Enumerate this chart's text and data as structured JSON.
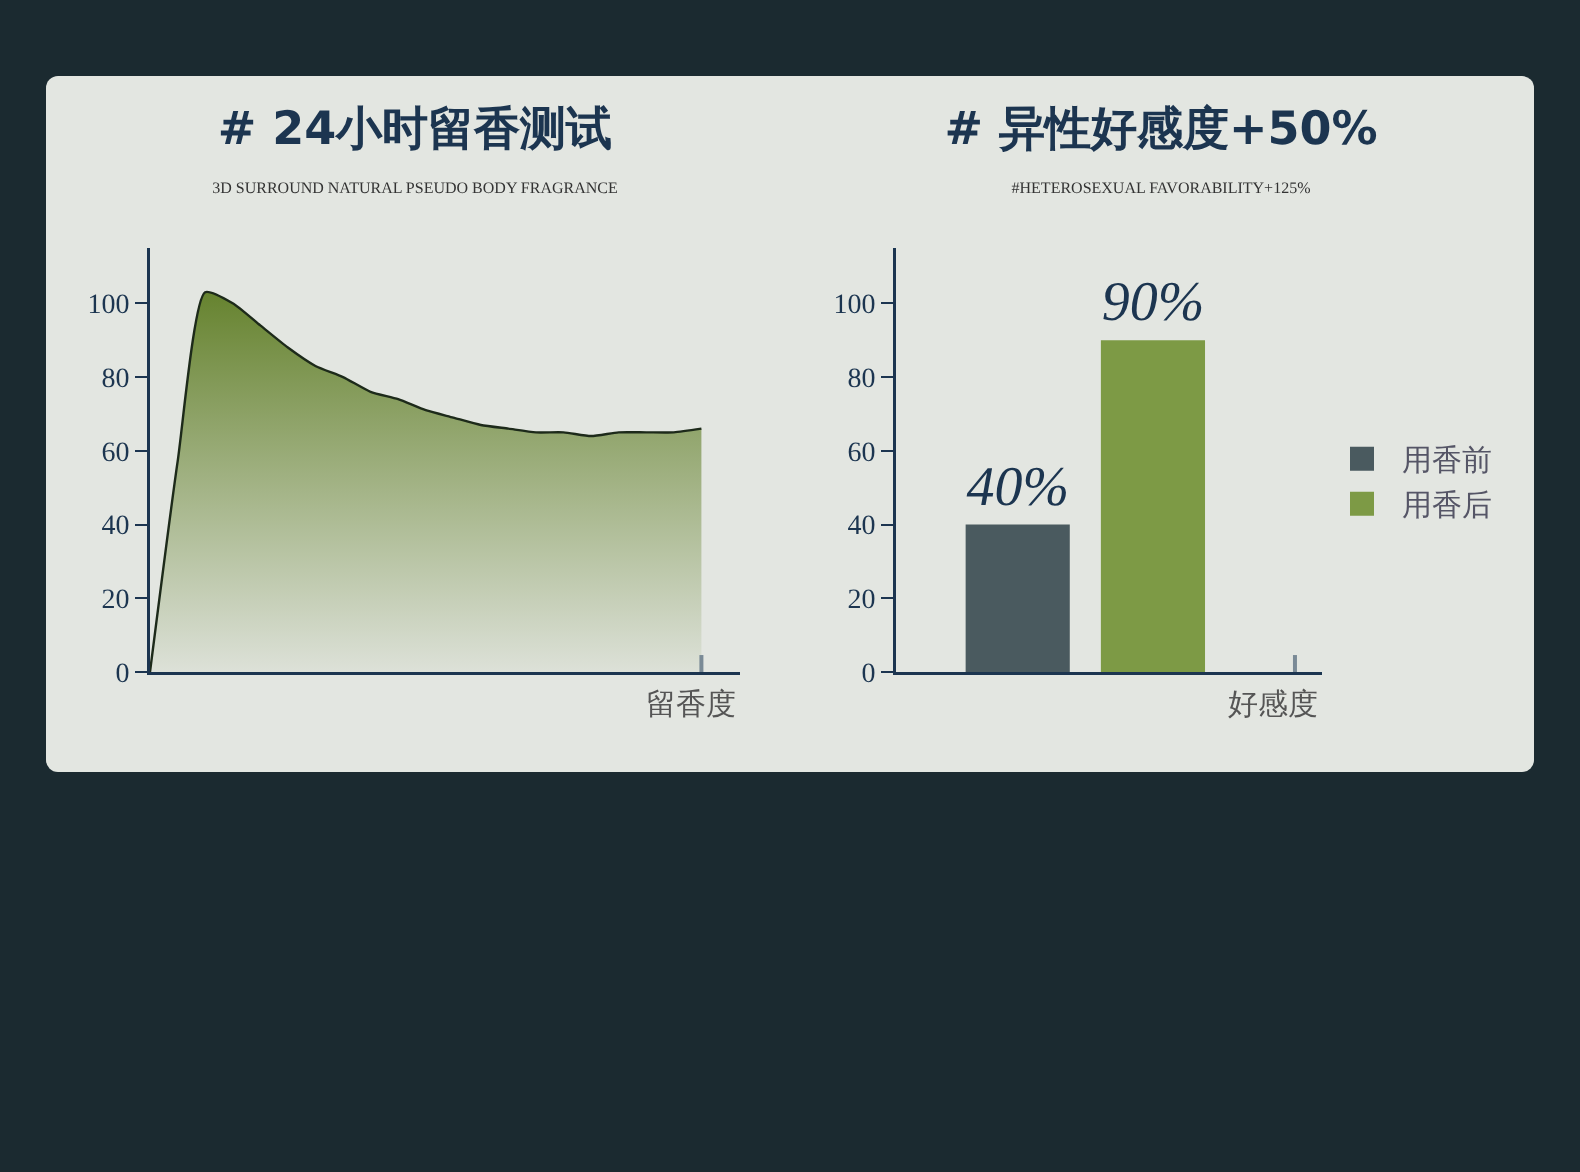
{
  "chart_data": [
    {
      "type": "area",
      "title": "# 24小时留香测试",
      "subtitle": "3D SURROUND NATURAL PSEUDO BODY FRAGRANCE",
      "xlabel": "留香度",
      "categories": [
        null,
        null,
        null,
        null,
        null,
        null,
        null,
        null,
        null,
        null,
        null,
        null,
        null,
        null,
        null,
        null,
        null,
        null,
        null,
        null,
        null
      ],
      "series": [
        {
          "color": "#66832f",
          "values": [
            0,
            57,
            103,
            100,
            94,
            88,
            83,
            80,
            76,
            74,
            71,
            69,
            67,
            66,
            65,
            65,
            64,
            65,
            65,
            65,
            66
          ]
        }
      ],
      "ylim": [
        0,
        115
      ],
      "yticks": [
        0,
        20,
        40,
        60,
        80,
        100
      ],
      "grid": false,
      "legend": false,
      "tick_labels": "y"
    },
    {
      "type": "bar",
      "title": "# 异性好感度+50%",
      "subtitle": "#HETEROSEXUAL FAVORABILITY+125%",
      "xlabel": "好感度",
      "categories": [
        null,
        null
      ],
      "series": [
        {
          "name": "用香前",
          "color": "#4a5a5f",
          "values": [
            40,
            null
          ],
          "value_labels": [
            "40%",
            null
          ]
        },
        {
          "name": "用香后",
          "color": "#7d9a45",
          "values": [
            null,
            90
          ],
          "value_labels": [
            null,
            "90%"
          ]
        }
      ],
      "ylim": [
        0,
        115
      ],
      "yticks": [
        0,
        20,
        40,
        60,
        80,
        100
      ],
      "grid": false,
      "legend": "right",
      "tick_labels": "y"
    }
  ]
}
